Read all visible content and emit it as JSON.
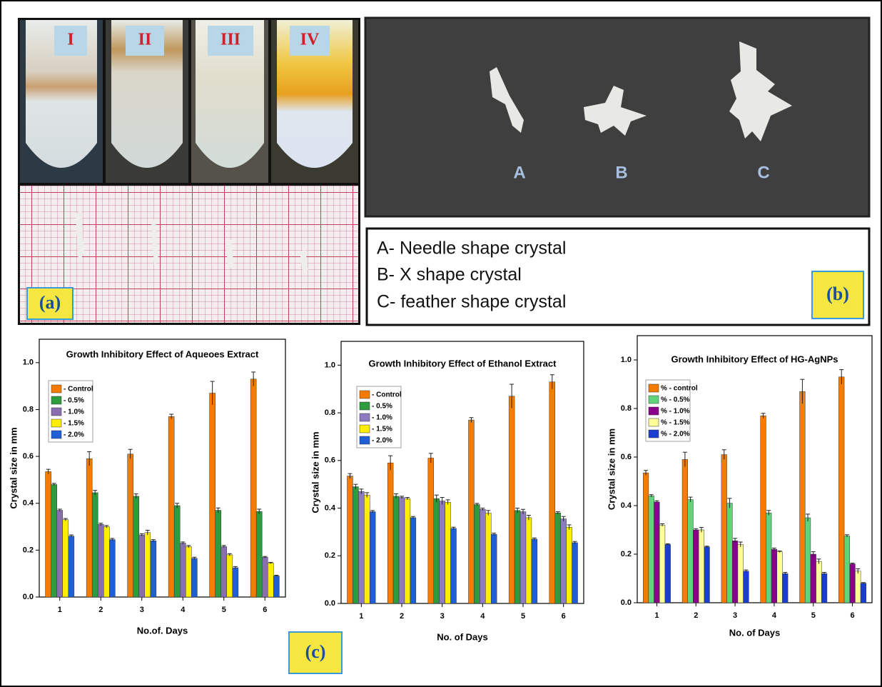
{
  "photos": {
    "tube_labels": [
      "I",
      "II",
      "III",
      "IV"
    ],
    "panel_a_label": "(a)",
    "crystal_labels": [
      "A",
      "B",
      "C"
    ],
    "descriptions": [
      "A- Needle shape crystal",
      "B- X shape crystal",
      "C- feather shape crystal"
    ],
    "panel_b_label": "(b)",
    "panel_c_label": "(c)"
  },
  "chart_data": [
    {
      "type": "bar",
      "title": "Growth Inhibitory Effect of Aqueoes Extract",
      "x_label": "No.of. Days",
      "y_label": "Crystal size in mm",
      "categories": [
        "1",
        "2",
        "3",
        "4",
        "5",
        "6"
      ],
      "ylim": [
        0,
        1.1
      ],
      "yticks": [
        {
          "value": 0,
          "label": "0.0"
        },
        0.2,
        0.4,
        0.6,
        0.8,
        {
          "value": 1,
          "label": "1.0"
        }
      ],
      "series": [
        {
          "name": "- Control",
          "color": "#f57c00",
          "values": [
            0.535,
            0.59,
            0.61,
            0.77,
            0.87,
            0.93
          ],
          "errors": [
            0.01,
            0.03,
            0.02,
            0.01,
            0.05,
            0.03
          ]
        },
        {
          "name": "- 0.5%",
          "color": "#2e9b3e",
          "values": [
            0.48,
            0.445,
            0.43,
            0.39,
            0.37,
            0.365
          ],
          "errors": [
            0.005,
            0.01,
            0.01,
            0.01,
            0.01,
            0.01
          ]
        },
        {
          "name": "- 1.0%",
          "color": "#8a6fb0",
          "values": [
            0.37,
            0.31,
            0.265,
            0.23,
            0.215,
            0.17
          ],
          "errors": [
            0.005,
            0.005,
            0.005,
            0.005,
            0.005,
            0.003
          ]
        },
        {
          "name": "- 1.5%",
          "color": "#ffee00",
          "values": [
            0.33,
            0.3,
            0.275,
            0.215,
            0.18,
            0.145
          ],
          "errors": [
            0.005,
            0.005,
            0.01,
            0.005,
            0.005,
            0.003
          ]
        },
        {
          "name": "- 2.0%",
          "color": "#1f5fd6",
          "values": [
            0.26,
            0.245,
            0.24,
            0.165,
            0.125,
            0.09
          ],
          "errors": [
            0.005,
            0.005,
            0.005,
            0.005,
            0.005,
            0.003
          ]
        }
      ]
    },
    {
      "type": "bar",
      "title": "Growth Inhibitory Effect of Ethanol Extract",
      "x_label": "No. of Days",
      "y_label": "Crystal size in mm",
      "categories": [
        "1",
        "2",
        "3",
        "4",
        "5",
        "6"
      ],
      "ylim": [
        0,
        1.1
      ],
      "yticks": [
        {
          "value": 0,
          "label": "0.0"
        },
        0.2,
        0.4,
        0.6,
        0.8,
        {
          "value": 1,
          "label": "1.0"
        }
      ],
      "series": [
        {
          "name": "- Control",
          "color": "#f57c00",
          "values": [
            0.535,
            0.59,
            0.61,
            0.77,
            0.87,
            0.93
          ],
          "errors": [
            0.01,
            0.03,
            0.02,
            0.01,
            0.05,
            0.03
          ]
        },
        {
          "name": "- 0.5%",
          "color": "#2e9b3e",
          "values": [
            0.49,
            0.45,
            0.44,
            0.415,
            0.39,
            0.38
          ],
          "errors": [
            0.01,
            0.01,
            0.015,
            0.005,
            0.01,
            0.005
          ]
        },
        {
          "name": "- 1.0%",
          "color": "#8e7cc3",
          "values": [
            0.47,
            0.445,
            0.43,
            0.395,
            0.385,
            0.355
          ],
          "errors": [
            0.01,
            0.005,
            0.015,
            0.005,
            0.01,
            0.01
          ]
        },
        {
          "name": "- 1.5%",
          "color": "#ffee00",
          "values": [
            0.455,
            0.44,
            0.425,
            0.38,
            0.36,
            0.32
          ],
          "errors": [
            0.01,
            0.005,
            0.01,
            0.01,
            0.01,
            0.01
          ]
        },
        {
          "name": "- 2.0%",
          "color": "#1f5fd6",
          "values": [
            0.385,
            0.36,
            0.315,
            0.29,
            0.27,
            0.255
          ],
          "errors": [
            0.005,
            0.005,
            0.005,
            0.005,
            0.005,
            0.005
          ]
        }
      ]
    },
    {
      "type": "bar",
      "title": "Growth Inhibitory Effect of HG-AgNPs",
      "x_label": "No. of Days",
      "y_label": "Crystal size in mm",
      "categories": [
        "1",
        "2",
        "3",
        "4",
        "5",
        "6"
      ],
      "ylim": [
        0,
        1.1
      ],
      "yticks": [
        {
          "value": 0,
          "label": "0.0"
        },
        0.2,
        0.4,
        0.6,
        0.8,
        {
          "value": 1,
          "label": "1.0"
        }
      ],
      "series": [
        {
          "name": "% - control",
          "color": "#f57c00",
          "values": [
            0.535,
            0.59,
            0.61,
            0.77,
            0.87,
            0.93
          ],
          "errors": [
            0.01,
            0.03,
            0.02,
            0.01,
            0.05,
            0.03
          ]
        },
        {
          "name": "% - 0.5%",
          "color": "#5fd47a",
          "values": [
            0.44,
            0.425,
            0.41,
            0.37,
            0.35,
            0.275
          ],
          "errors": [
            0.005,
            0.01,
            0.02,
            0.01,
            0.015,
            0.005
          ]
        },
        {
          "name": "% - 1.0%",
          "color": "#8b008b",
          "values": [
            0.415,
            0.3,
            0.255,
            0.22,
            0.2,
            0.16
          ],
          "errors": [
            0.005,
            0.005,
            0.01,
            0.005,
            0.01,
            0.003
          ]
        },
        {
          "name": "% - 1.5%",
          "color": "#ffff99",
          "values": [
            0.32,
            0.3,
            0.24,
            0.21,
            0.17,
            0.13
          ],
          "errors": [
            0.005,
            0.01,
            0.01,
            0.003,
            0.01,
            0.01
          ]
        },
        {
          "name": "% - 2.0%",
          "color": "#1a3fd0",
          "values": [
            0.24,
            0.23,
            0.13,
            0.12,
            0.12,
            0.08
          ],
          "errors": [
            0.003,
            0.003,
            0.005,
            0.005,
            0.005,
            0.003
          ]
        }
      ]
    }
  ]
}
